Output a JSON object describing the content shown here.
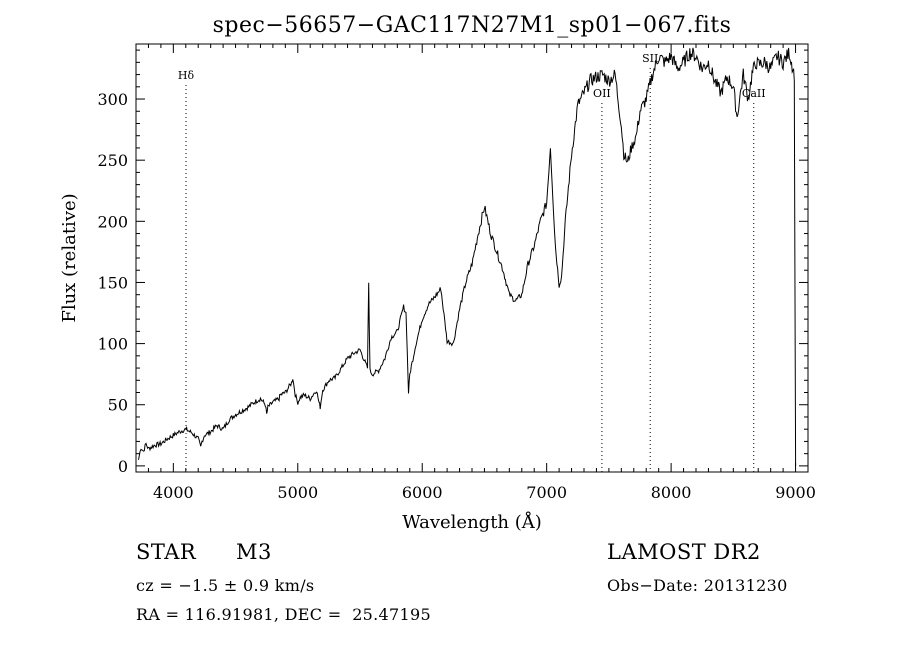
{
  "chart_data": {
    "type": "line",
    "title": "spec−56657−GAC117N27M1_sp01−067.fits",
    "xlabel": "Wavelength (Å)",
    "ylabel": "Flux (relative)",
    "xlim": [
      3700,
      9100
    ],
    "ylim": [
      -5,
      345
    ],
    "x_ticks": [
      {
        "value": 4000,
        "label": "4000"
      },
      {
        "value": 5000,
        "label": "5000"
      },
      {
        "value": 6000,
        "label": "6000"
      },
      {
        "value": 7000,
        "label": "7000"
      },
      {
        "value": 8000,
        "label": "8000"
      },
      {
        "value": 9000,
        "label": "9000"
      }
    ],
    "y_ticks": [
      {
        "value": 0,
        "label": "0"
      },
      {
        "value": 50,
        "label": "50"
      },
      {
        "value": 100,
        "label": "100"
      },
      {
        "value": 150,
        "label": "150"
      },
      {
        "value": 200,
        "label": "200"
      },
      {
        "value": 250,
        "label": "250"
      },
      {
        "value": 300,
        "label": "300"
      }
    ],
    "lines": [
      {
        "wavelength": 4102,
        "label": "Hδ"
      },
      {
        "wavelength": 7444,
        "label": "OII"
      },
      {
        "wavelength": 7832,
        "label": "SII"
      },
      {
        "wavelength": 8664,
        "label": "CaII"
      }
    ],
    "series": [
      {
        "x": [
          3720,
          3740,
          3760,
          3780,
          3800,
          3850,
          3900,
          3950,
          4000,
          4050,
          4100,
          4150,
          4200,
          4220,
          4230,
          4250,
          4300,
          4350,
          4400,
          4450,
          4500,
          4550,
          4600,
          4650,
          4700,
          4740,
          4750,
          4760,
          4800,
          4850,
          4860,
          4900,
          4950,
          4960,
          4980,
          5000,
          5020,
          5050,
          5100,
          5150,
          5170,
          5180,
          5200,
          5250,
          5300,
          5350,
          5400,
          5450,
          5500,
          5540,
          5560,
          5570,
          5580,
          5600,
          5650,
          5700,
          5750,
          5800,
          5850,
          5870,
          5880,
          5890,
          5900,
          5950,
          6000,
          6050,
          6100,
          6150,
          6200,
          6250,
          6300,
          6350,
          6400,
          6450,
          6500,
          6550,
          6600,
          6650,
          6700,
          6750,
          6800,
          6850,
          6900,
          6950,
          7000,
          7030,
          7050,
          7070,
          7100,
          7120,
          7150,
          7200,
          7250,
          7300,
          7350,
          7400,
          7450,
          7500,
          7550,
          7600,
          7620,
          7650,
          7680,
          7700,
          7720,
          7750,
          7800,
          7850,
          7900,
          7950,
          8000,
          8050,
          8100,
          8150,
          8200,
          8250,
          8300,
          8350,
          8400,
          8450,
          8500,
          8530,
          8550,
          8580,
          8600,
          8620,
          8650,
          8680,
          8700,
          8750,
          8800,
          8850,
          8900,
          8950,
          8990,
          9000
        ],
        "y": [
          5,
          15,
          12,
          18,
          14,
          17,
          18,
          22,
          25,
          28,
          30,
          27,
          22,
          15,
          20,
          25,
          28,
          33,
          30,
          38,
          42,
          45,
          48,
          52,
          55,
          50,
          42,
          48,
          52,
          55,
          58,
          60,
          68,
          72,
          58,
          52,
          56,
          58,
          55,
          62,
          52,
          48,
          62,
          70,
          72,
          80,
          88,
          92,
          95,
          85,
          80,
          150,
          78,
          75,
          78,
          88,
          105,
          110,
          130,
          125,
          92,
          60,
          75,
          100,
          120,
          132,
          138,
          145,
          102,
          100,
          128,
          150,
          165,
          190,
          212,
          190,
          175,
          160,
          140,
          135,
          140,
          165,
          180,
          200,
          215,
          262,
          220,
          180,
          148,
          155,
          200,
          255,
          295,
          305,
          315,
          318,
          320,
          315,
          320,
          278,
          255,
          248,
          260,
          265,
          270,
          290,
          300,
          320,
          335,
          330,
          335,
          325,
          330,
          338,
          335,
          325,
          330,
          315,
          305,
          318,
          310,
          285,
          300,
          320,
          310,
          300,
          320,
          330,
          328,
          330,
          325,
          335,
          330,
          338,
          320,
          0
        ]
      }
    ]
  },
  "info": {
    "object_class": "STAR",
    "subclass": "M3",
    "survey": "LAMOST DR2",
    "redshift": "cz = −1.5 ± 0.9 km/s",
    "obs_date": "Obs−Date: 20131230",
    "coords": "RA = 116.91981, DEC =  25.47195"
  }
}
